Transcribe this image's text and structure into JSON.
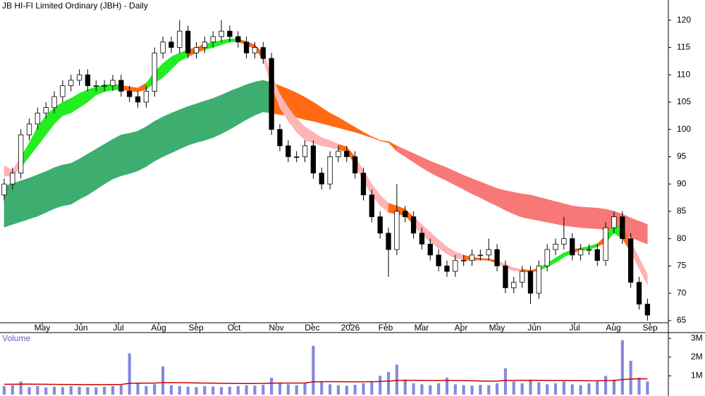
{
  "chart_data": {
    "type": "candlestick",
    "title": "JB HI-FI Limited Ordinary (JBH) - Daily",
    "open": [
      88,
      90,
      92,
      99,
      101,
      103,
      104,
      106,
      108,
      109,
      110,
      108,
      108,
      108,
      109,
      107,
      106,
      105,
      107,
      114,
      116,
      115,
      118,
      114,
      115,
      116,
      117,
      118,
      117,
      116,
      114,
      115,
      113,
      100,
      97,
      95,
      95,
      97,
      92,
      90,
      95,
      96,
      95,
      92,
      88,
      84,
      81,
      78,
      85,
      84,
      81,
      79,
      77,
      75,
      74,
      76,
      76,
      77,
      77,
      78,
      75,
      71,
      72,
      74,
      70,
      75,
      78,
      79,
      80,
      77,
      78,
      78,
      76,
      82,
      84,
      80,
      72,
      68
    ],
    "high": [
      91,
      93,
      100,
      102,
      104,
      105,
      107,
      109,
      110,
      111,
      111,
      109,
      109,
      110,
      110,
      108,
      107,
      108,
      115,
      117,
      117,
      120,
      119,
      116,
      117,
      118,
      120,
      119,
      118,
      117,
      116,
      116,
      114,
      101,
      98,
      96,
      98,
      98,
      93,
      96,
      97,
      97,
      96,
      93,
      89,
      85,
      82,
      90,
      86,
      85,
      82,
      80,
      78,
      76,
      77,
      77,
      78,
      78,
      80,
      79,
      76,
      73,
      75,
      75,
      76,
      79,
      80,
      84,
      81,
      79,
      79,
      79,
      83,
      85,
      85,
      81,
      73,
      69
    ],
    "low": [
      87,
      89,
      91,
      98,
      100,
      102,
      103,
      105,
      107,
      108,
      107,
      107,
      107,
      107,
      106,
      105,
      104,
      104,
      106,
      113,
      114,
      114,
      113,
      113,
      114,
      115,
      116,
      116,
      115,
      113,
      113,
      112,
      99,
      96,
      94,
      94,
      94,
      91,
      89,
      89,
      94,
      94,
      91,
      87,
      83,
      80,
      73,
      77,
      83,
      80,
      78,
      76,
      74,
      73,
      73,
      75,
      75,
      76,
      76,
      74,
      70,
      70,
      71,
      68,
      69,
      74,
      77,
      78,
      76,
      76,
      77,
      75,
      75,
      81,
      79,
      71,
      67,
      65
    ],
    "close": [
      90,
      92,
      99,
      101,
      103,
      104,
      106,
      108,
      109,
      110,
      108,
      108,
      108,
      109,
      107,
      106,
      105,
      107,
      114,
      116,
      115,
      118,
      114,
      115,
      116,
      117,
      118,
      117,
      116,
      114,
      115,
      113,
      100,
      97,
      95,
      95,
      97,
      92,
      90,
      95,
      96,
      95,
      92,
      88,
      84,
      81,
      78,
      85,
      84,
      81,
      79,
      77,
      75,
      74,
      76,
      76,
      77,
      77,
      78,
      75,
      71,
      72,
      74,
      70,
      75,
      78,
      79,
      80,
      77,
      78,
      78,
      76,
      82,
      84,
      80,
      72,
      68,
      66
    ],
    "up_color": "#ffffff",
    "down_color": "#000000",
    "xlim": [
      0,
      80
    ],
    "xticks": [
      {
        "value": 5.06,
        "label": "May"
      },
      {
        "value": 9.7,
        "label": "Jun"
      },
      {
        "value": 14.18,
        "label": "Jul"
      },
      {
        "value": 18.99,
        "label": "Aug"
      },
      {
        "value": 23.46,
        "label": "Sep"
      },
      {
        "value": 28.02,
        "label": "Oct"
      },
      {
        "value": 33.08,
        "label": "Nov"
      },
      {
        "value": 37.38,
        "label": "Dec"
      },
      {
        "value": 41.94,
        "label": "2026"
      },
      {
        "value": 46.16,
        "label": "Feb"
      },
      {
        "value": 50.46,
        "label": "Mar"
      },
      {
        "value": 55.19,
        "label": "Apr"
      },
      {
        "value": 59.49,
        "label": "May"
      },
      {
        "value": 63.97,
        "label": "Jun"
      },
      {
        "value": 68.78,
        "label": "Jul"
      },
      {
        "value": 73.42,
        "label": "Aug"
      },
      {
        "value": 77.81,
        "label": "Sep"
      }
    ],
    "ylim": [
      64.6,
      123.7
    ],
    "yticks": [
      65,
      70,
      75,
      80,
      85,
      90,
      95,
      100,
      105,
      110,
      115,
      120
    ],
    "short_band": {
      "upper": [
        93.4,
        92.5,
        95,
        97.5,
        100.5,
        102.5,
        104,
        105,
        105.7,
        106.6,
        107.3,
        107.8,
        108.2,
        108.3,
        108.1,
        107.8,
        107.6,
        108.5,
        110.5,
        112.1,
        113.3,
        114,
        114.6,
        115,
        115.6,
        116,
        116.3,
        116.6,
        116.6,
        116.1,
        115.5,
        114,
        110,
        106.5,
        104,
        102,
        100.5,
        99.5,
        98.5,
        98,
        97.3,
        96.8,
        95,
        92.5,
        90,
        88,
        86.5,
        86,
        85.4,
        84,
        82.6,
        81.2,
        79.8,
        78.5,
        77.6,
        77,
        76.6,
        76.4,
        76.3,
        76,
        75.3,
        74.7,
        74.4,
        74.2,
        74.6,
        75.5,
        76.5,
        77.4,
        78,
        78.3,
        78.6,
        79.1,
        80.5,
        82.6,
        82,
        79.5,
        76.5,
        73.5
      ],
      "lower": [
        91.4,
        91.5,
        93,
        95,
        97,
        99,
        101,
        102.5,
        103,
        104,
        105,
        106.3,
        106.9,
        107.2,
        107.3,
        107,
        106.9,
        107.3,
        108.5,
        109.5,
        111,
        112.5,
        113.3,
        114,
        114.6,
        115,
        115.5,
        116,
        116.1,
        115.4,
        114.8,
        112.8,
        108,
        104,
        101.5,
        99.5,
        98,
        97.5,
        97,
        96.7,
        96.3,
        95.9,
        93.5,
        90.5,
        88,
        86,
        84.8,
        84.5,
        84.2,
        82.5,
        80.7,
        79.4,
        78.2,
        77.2,
        76.4,
        76.1,
        76,
        76.1,
        76,
        75.5,
        74.7,
        74.1,
        74,
        73.8,
        74.2,
        74.8,
        75.6,
        76.6,
        77.4,
        77.8,
        78,
        78.5,
        79.3,
        81,
        80,
        77.5,
        74.5,
        71.5
      ],
      "colors": [
        "#ffb4b4",
        "#ffb4b4",
        "#22ee22",
        "#22ee22",
        "#22ee22",
        "#22ee22",
        "#22ee22",
        "#22ee22",
        "#22ee22",
        "#22ee22",
        "#22ee22",
        "#22ee22",
        "#22ee22",
        "#22ee22",
        "#ff6a13",
        "#ff6a13",
        "#ff6a13",
        "#22ee22",
        "#22ee22",
        "#22ee22",
        "#22ee22",
        "#22ee22",
        "#ff6a13",
        "#ff6a13",
        "#22ee22",
        "#22ee22",
        "#22ee22",
        "#22ee22",
        "#ff6a13",
        "#ff6a13",
        "#ff6a13",
        "#ffb4b4",
        "#ffb4b4",
        "#ffb4b4",
        "#ffb4b4",
        "#ffb4b4",
        "#ffb4b4",
        "#ffb4b4",
        "#ffb4b4",
        "#ffb4b4",
        "#ff6a13",
        "#ff6a13",
        "#ffb4b4",
        "#ffb4b4",
        "#ffb4b4",
        "#ffb4b4",
        "#ff6a13",
        "#ff6a13",
        "#ff6a13",
        "#ffb4b4",
        "#ffb4b4",
        "#ffb4b4",
        "#ffb4b4",
        "#ffb4b4",
        "#ffb4b4",
        "#ff6a13",
        "#ff6a13",
        "#ff6a13",
        "#ff6a13",
        "#ffb4b4",
        "#ffb4b4",
        "#ffb4b4",
        "#ff6a13",
        "#ff6a13",
        "#22ee22",
        "#22ee22",
        "#22ee22",
        "#22ee22",
        "#ff6a13",
        "#22ee22",
        "#22ee22",
        "#ff6a13",
        "#22ee22",
        "#22ee22",
        "#ff6a13",
        "#ffb4b4",
        "#ffb4b4",
        "#ffb4b4"
      ]
    },
    "long_band": {
      "upper": [
        89.6,
        90.1,
        90.6,
        91.1,
        91.7,
        92.3,
        93,
        93.5,
        93.8,
        94.6,
        95.5,
        96.4,
        97.3,
        98.2,
        99,
        99.3,
        99.7,
        100.5,
        101.5,
        102.3,
        103,
        103.6,
        104.2,
        104.7,
        105.2,
        105.7,
        106.3,
        107,
        107.6,
        108.2,
        108.7,
        109,
        108.6,
        108,
        107.4,
        106.7,
        105.9,
        105,
        104,
        103,
        102.2,
        101.3,
        100.4,
        99.5,
        98.7,
        98,
        97.8,
        97,
        96.3,
        95.6,
        94.9,
        94.2,
        93.6,
        93,
        92.3,
        91.6,
        91,
        90.4,
        89.8,
        89.2,
        88.8,
        88.5,
        88.2,
        88,
        87.6,
        87.2,
        86.8,
        86.4,
        86,
        85.8,
        85.7,
        85.6,
        85.4,
        85,
        84.5,
        83.8,
        83.2,
        82.6
      ],
      "lower": [
        82.1,
        82.6,
        83.1,
        83.6,
        84.1,
        84.8,
        85.5,
        86,
        86.3,
        87.2,
        88,
        89,
        90,
        90.9,
        91.5,
        91.9,
        92.4,
        93.2,
        94.2,
        95,
        95.7,
        96.4,
        97.1,
        97.6,
        98,
        98.5,
        99.2,
        100,
        100.9,
        101.8,
        102.6,
        103.2,
        103,
        102.7,
        102.5,
        102.2,
        101.8,
        101.5,
        101.1,
        100.7,
        100.3,
        99.9,
        99.5,
        99,
        98.5,
        97.9,
        97.6,
        96,
        95,
        94,
        93,
        92.1,
        91.3,
        90.6,
        89.8,
        89,
        88.2,
        87.5,
        86.7,
        86,
        85.2,
        84.5,
        83.9,
        83.6,
        83.3,
        83,
        82.7,
        82.4,
        82.2,
        82,
        81.9,
        81.8,
        81.6,
        81.3,
        80.8,
        80.2,
        79.6,
        79
      ],
      "colors": [
        "#3dae6f",
        "#3dae6f",
        "#3dae6f",
        "#3dae6f",
        "#3dae6f",
        "#3dae6f",
        "#3dae6f",
        "#3dae6f",
        "#3dae6f",
        "#3dae6f",
        "#3dae6f",
        "#3dae6f",
        "#3dae6f",
        "#3dae6f",
        "#3dae6f",
        "#3dae6f",
        "#3dae6f",
        "#3dae6f",
        "#3dae6f",
        "#3dae6f",
        "#3dae6f",
        "#3dae6f",
        "#3dae6f",
        "#3dae6f",
        "#3dae6f",
        "#3dae6f",
        "#3dae6f",
        "#3dae6f",
        "#3dae6f",
        "#3dae6f",
        "#3dae6f",
        "#3dae6f",
        "#ff6a13",
        "#ff6a13",
        "#ff6a13",
        "#ff6a13",
        "#ff6a13",
        "#ff6a13",
        "#ff6a13",
        "#ff6a13",
        "#ff6a13",
        "#ff6a13",
        "#ff6a13",
        "#ff6a13",
        "#ff6a13",
        "#ff6a13",
        "#ff6a13",
        "#f87878",
        "#f87878",
        "#f87878",
        "#f87878",
        "#f87878",
        "#f87878",
        "#f87878",
        "#f87878",
        "#f87878",
        "#f87878",
        "#f87878",
        "#f87878",
        "#f87878",
        "#f87878",
        "#f87878",
        "#f87878",
        "#f87878",
        "#f87878",
        "#f87878",
        "#f87878",
        "#f87878",
        "#f87878",
        "#f87878",
        "#f87878",
        "#f87878",
        "#f87878",
        "#f87878",
        "#f87878",
        "#f87878",
        "#f87878",
        "#f87878"
      ]
    },
    "volume": {
      "label": "Volume",
      "color": "#8888dd",
      "values": [
        450000,
        500000,
        700000,
        400000,
        450000,
        380000,
        420000,
        400000,
        450000,
        420000,
        400000,
        380000,
        420000,
        450000,
        500000,
        2200000,
        600000,
        450000,
        550000,
        1500000,
        500000,
        450000,
        420000,
        400000,
        450000,
        430000,
        400000,
        420000,
        460000,
        500000,
        480000,
        520000,
        900000,
        600000,
        550000,
        500000,
        600000,
        2600000,
        700000,
        550000,
        500000,
        480000,
        520000,
        600000,
        700000,
        1000000,
        1200000,
        1600000,
        800000,
        600000,
        550000,
        500000,
        600000,
        900000,
        550000,
        500000,
        480000,
        520000,
        500000,
        600000,
        1400000,
        700000,
        600000,
        800000,
        650000,
        550000,
        600000,
        700000,
        550000,
        500000,
        600000,
        700000,
        1000000,
        800000,
        2900000,
        1800000,
        900000,
        700000
      ],
      "ma_color": "#cc0000",
      "ma": [
        550000,
        550000,
        560000,
        560000,
        555000,
        550000,
        545000,
        540000,
        540000,
        535000,
        530000,
        530000,
        530000,
        535000,
        540000,
        600000,
        610000,
        610000,
        615000,
        640000,
        640000,
        635000,
        630000,
        620000,
        615000,
        610000,
        600000,
        595000,
        590000,
        590000,
        590000,
        595000,
        610000,
        615000,
        615000,
        615000,
        620000,
        680000,
        690000,
        690000,
        690000,
        685000,
        680000,
        680000,
        690000,
        700000,
        720000,
        750000,
        760000,
        760000,
        755000,
        750000,
        750000,
        755000,
        750000,
        745000,
        735000,
        725000,
        720000,
        720000,
        750000,
        755000,
        755000,
        760000,
        760000,
        755000,
        750000,
        750000,
        745000,
        740000,
        735000,
        735000,
        745000,
        750000,
        800000,
        830000,
        840000,
        840000
      ],
      "ylim": [
        0,
        3230000
      ],
      "yticks": [
        {
          "value": 1000000,
          "label": "1M"
        },
        {
          "value": 2000000,
          "label": "2M"
        },
        {
          "value": 3000000,
          "label": "3M"
        }
      ]
    }
  }
}
